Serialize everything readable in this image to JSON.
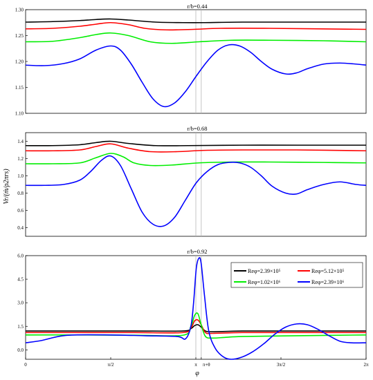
{
  "chart_data": [
    {
      "type": "line",
      "title": "r/b=0.44",
      "xlabel": "",
      "ylabel": "",
      "xlim": [
        0,
        6.2832
      ],
      "ylim": [
        1.1,
        1.3
      ],
      "yticks": [
        "1.10",
        "1.15",
        "1.20",
        "1.25",
        "1.30"
      ],
      "xticks": [],
      "grid": false,
      "vlines": [
        3.1416,
        3.2416
      ],
      "series": [
        {
          "color": "#000000",
          "x": [
            0,
            0.5,
            1.0,
            1.3,
            1.571,
            1.9,
            2.4,
            2.9,
            3.3,
            4.0,
            5.0,
            6.2832
          ],
          "y": [
            1.276,
            1.277,
            1.279,
            1.281,
            1.282,
            1.28,
            1.276,
            1.275,
            1.275,
            1.276,
            1.276,
            1.276
          ]
        },
        {
          "color": "#ff0000",
          "x": [
            0,
            0.5,
            1.0,
            1.3,
            1.571,
            1.9,
            2.2,
            2.6,
            3.1,
            3.6,
            4.5,
            6.2832
          ],
          "y": [
            1.263,
            1.264,
            1.268,
            1.272,
            1.275,
            1.271,
            1.264,
            1.261,
            1.262,
            1.264,
            1.264,
            1.262
          ]
        },
        {
          "color": "#00ee00",
          "x": [
            0,
            0.5,
            1.0,
            1.3,
            1.571,
            1.9,
            2.3,
            2.7,
            3.2,
            3.8,
            4.5,
            5.5,
            6.2832
          ],
          "y": [
            1.238,
            1.239,
            1.246,
            1.252,
            1.255,
            1.25,
            1.238,
            1.235,
            1.238,
            1.241,
            1.241,
            1.24,
            1.238
          ]
        },
        {
          "color": "#0000ff",
          "x": [
            0,
            0.35,
            0.7,
            1.0,
            1.3,
            1.571,
            1.75,
            1.95,
            2.15,
            2.35,
            2.55,
            2.75,
            2.95,
            3.15,
            3.35,
            3.55,
            3.75,
            3.95,
            4.15,
            4.35,
            4.55,
            4.8,
            5.0,
            5.2,
            5.5,
            5.8,
            6.1,
            6.2832
          ],
          "y": [
            1.193,
            1.192,
            1.196,
            1.205,
            1.222,
            1.23,
            1.222,
            1.195,
            1.16,
            1.128,
            1.113,
            1.12,
            1.142,
            1.172,
            1.2,
            1.222,
            1.232,
            1.23,
            1.218,
            1.2,
            1.185,
            1.176,
            1.178,
            1.186,
            1.195,
            1.197,
            1.195,
            1.193
          ]
        }
      ]
    },
    {
      "type": "line",
      "title": "r/b=0.68",
      "xlabel": "",
      "ylabel": "Vr/(ṁ/ρ2πrs)",
      "xlim": [
        0,
        6.2832
      ],
      "ylim": [
        0.3,
        1.5
      ],
      "yticks": [
        "0.4",
        "0.6",
        "0.8",
        "1.0",
        "1.2",
        "1.4"
      ],
      "xticks": [],
      "grid": false,
      "vlines": [
        3.1416,
        3.2416
      ],
      "series": [
        {
          "color": "#000000",
          "x": [
            0,
            0.5,
            1.0,
            1.3,
            1.571,
            1.9,
            2.4,
            3.0,
            4.0,
            5.0,
            6.2832
          ],
          "y": [
            1.35,
            1.35,
            1.36,
            1.385,
            1.4,
            1.375,
            1.35,
            1.35,
            1.355,
            1.355,
            1.355
          ]
        },
        {
          "color": "#ff0000",
          "x": [
            0,
            0.5,
            1.0,
            1.3,
            1.571,
            1.9,
            2.3,
            2.8,
            3.3,
            4.0,
            5.0,
            6.2832
          ],
          "y": [
            1.29,
            1.29,
            1.3,
            1.34,
            1.37,
            1.32,
            1.28,
            1.28,
            1.295,
            1.3,
            1.3,
            1.29
          ]
        },
        {
          "color": "#00ee00",
          "x": [
            0,
            0.5,
            1.0,
            1.3,
            1.571,
            1.8,
            2.0,
            2.3,
            2.7,
            3.2,
            3.8,
            4.5,
            5.5,
            6.2832
          ],
          "y": [
            1.14,
            1.14,
            1.15,
            1.21,
            1.26,
            1.22,
            1.15,
            1.12,
            1.125,
            1.15,
            1.16,
            1.16,
            1.155,
            1.15
          ]
        },
        {
          "color": "#0000ff",
          "x": [
            0,
            0.35,
            0.7,
            1.0,
            1.2,
            1.4,
            1.571,
            1.75,
            1.95,
            2.15,
            2.35,
            2.55,
            2.75,
            2.95,
            3.15,
            3.35,
            3.55,
            3.75,
            3.95,
            4.15,
            4.35,
            4.55,
            4.8,
            5.0,
            5.2,
            5.5,
            5.8,
            6.1,
            6.2832
          ],
          "y": [
            0.89,
            0.89,
            0.9,
            0.95,
            1.05,
            1.18,
            1.23,
            1.12,
            0.85,
            0.58,
            0.44,
            0.42,
            0.52,
            0.72,
            0.92,
            1.05,
            1.13,
            1.155,
            1.15,
            1.1,
            1.0,
            0.88,
            0.8,
            0.79,
            0.84,
            0.9,
            0.93,
            0.9,
            0.89
          ]
        }
      ]
    },
    {
      "type": "line",
      "title": "r/b=0.92",
      "xlabel": "φ",
      "ylabel": "",
      "xlim": [
        0,
        6.2832
      ],
      "ylim": [
        -0.6,
        6.0
      ],
      "yticks": [
        "0.0",
        "1.5",
        "3.0",
        "4.5",
        "6.0"
      ],
      "xticks": [
        "0",
        "π/2",
        "π",
        "π+θ",
        "3π/2",
        "2π"
      ],
      "grid": false,
      "vlines": [
        3.1416,
        3.2416
      ],
      "legend": {
        "position": "top-right",
        "entries": [
          {
            "name": "Reφ=2.39×10⁵",
            "color": "#000000"
          },
          {
            "name": "Reφ=5.12×10⁵",
            "color": "#ff0000"
          },
          {
            "name": "Reφ=1.02×10⁶",
            "color": "#00ee00"
          },
          {
            "name": "Reφ=2.39×10⁶",
            "color": "#0000ff"
          }
        ]
      },
      "series": [
        {
          "color": "#000000",
          "x": [
            0,
            1.0,
            2.0,
            2.9,
            3.05,
            3.12,
            3.18,
            3.24,
            3.32,
            3.45,
            4.0,
            5.0,
            6.2832
          ],
          "y": [
            1.2,
            1.2,
            1.2,
            1.2,
            1.35,
            1.55,
            1.6,
            1.45,
            1.2,
            1.15,
            1.2,
            1.2,
            1.2
          ]
        },
        {
          "color": "#ff0000",
          "x": [
            0,
            1.0,
            2.0,
            2.9,
            3.05,
            3.12,
            3.18,
            3.24,
            3.32,
            3.45,
            4.0,
            5.0,
            6.2832
          ],
          "y": [
            1.1,
            1.1,
            1.1,
            1.1,
            1.4,
            1.85,
            1.9,
            1.6,
            1.1,
            1.05,
            1.1,
            1.1,
            1.1
          ]
        },
        {
          "color": "#00ee00",
          "x": [
            0,
            1.0,
            2.0,
            2.9,
            3.05,
            3.12,
            3.18,
            3.24,
            3.32,
            3.45,
            3.7,
            4.0,
            5.0,
            6.2832
          ],
          "y": [
            0.95,
            0.95,
            0.93,
            0.93,
            1.5,
            2.2,
            2.3,
            1.6,
            0.85,
            0.75,
            0.8,
            0.85,
            0.9,
            0.95
          ]
        },
        {
          "color": "#0000ff",
          "x": [
            0,
            0.3,
            0.6,
            0.9,
            1.571,
            2.2,
            2.8,
            2.95,
            3.05,
            3.1,
            3.15,
            3.2,
            3.24,
            3.3,
            3.38,
            3.5,
            3.65,
            3.8,
            4.0,
            4.2,
            4.4,
            4.6,
            4.8,
            5.0,
            5.2,
            5.4,
            5.6,
            5.8,
            6.0,
            6.2832
          ],
          "y": [
            0.45,
            0.6,
            0.85,
            0.95,
            0.95,
            0.9,
            0.85,
            0.7,
            1.5,
            3.0,
            5.2,
            5.85,
            5.5,
            3.5,
            1.2,
            0.1,
            -0.45,
            -0.6,
            -0.45,
            -0.1,
            0.4,
            1.0,
            1.45,
            1.65,
            1.6,
            1.3,
            0.9,
            0.55,
            0.45,
            0.45
          ]
        }
      ]
    }
  ]
}
